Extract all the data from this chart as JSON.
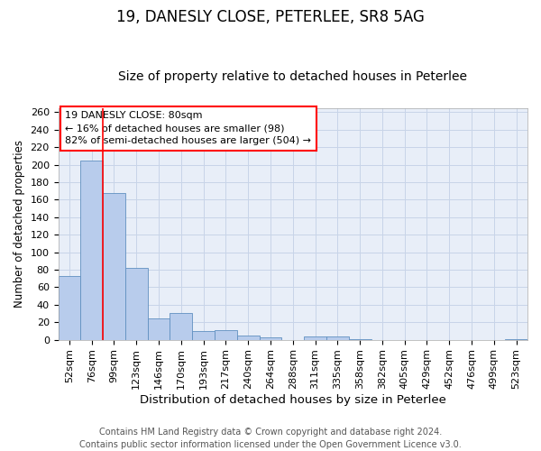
{
  "title1": "19, DANESLY CLOSE, PETERLEE, SR8 5AG",
  "title2": "Size of property relative to detached houses in Peterlee",
  "xlabel": "Distribution of detached houses by size in Peterlee",
  "ylabel": "Number of detached properties",
  "categories": [
    "52sqm",
    "76sqm",
    "99sqm",
    "123sqm",
    "146sqm",
    "170sqm",
    "193sqm",
    "217sqm",
    "240sqm",
    "264sqm",
    "288sqm",
    "311sqm",
    "335sqm",
    "358sqm",
    "382sqm",
    "405sqm",
    "429sqm",
    "452sqm",
    "476sqm",
    "499sqm",
    "523sqm"
  ],
  "values": [
    73,
    205,
    168,
    82,
    24,
    30,
    10,
    11,
    5,
    3,
    0,
    4,
    4,
    1,
    0,
    0,
    0,
    0,
    0,
    0,
    1
  ],
  "bar_color": "#b8ccec",
  "bar_edge_color": "#6090c0",
  "red_line_x": 1.5,
  "annotation_text": "19 DANESLY CLOSE: 80sqm\n← 16% of detached houses are smaller (98)\n82% of semi-detached houses are larger (504) →",
  "annotation_box_color": "white",
  "annotation_box_edge_color": "red",
  "ylim_max": 265,
  "yticks": [
    0,
    20,
    40,
    60,
    80,
    100,
    120,
    140,
    160,
    180,
    200,
    220,
    240,
    260
  ],
  "grid_color": "#c8d4e8",
  "background_color": "#e8eef8",
  "footer1": "Contains HM Land Registry data © Crown copyright and database right 2024.",
  "footer2": "Contains public sector information licensed under the Open Government Licence v3.0.",
  "title1_fontsize": 12,
  "title2_fontsize": 10,
  "xlabel_fontsize": 9.5,
  "ylabel_fontsize": 8.5,
  "tick_fontsize": 8,
  "annotation_fontsize": 8,
  "footer_fontsize": 7
}
